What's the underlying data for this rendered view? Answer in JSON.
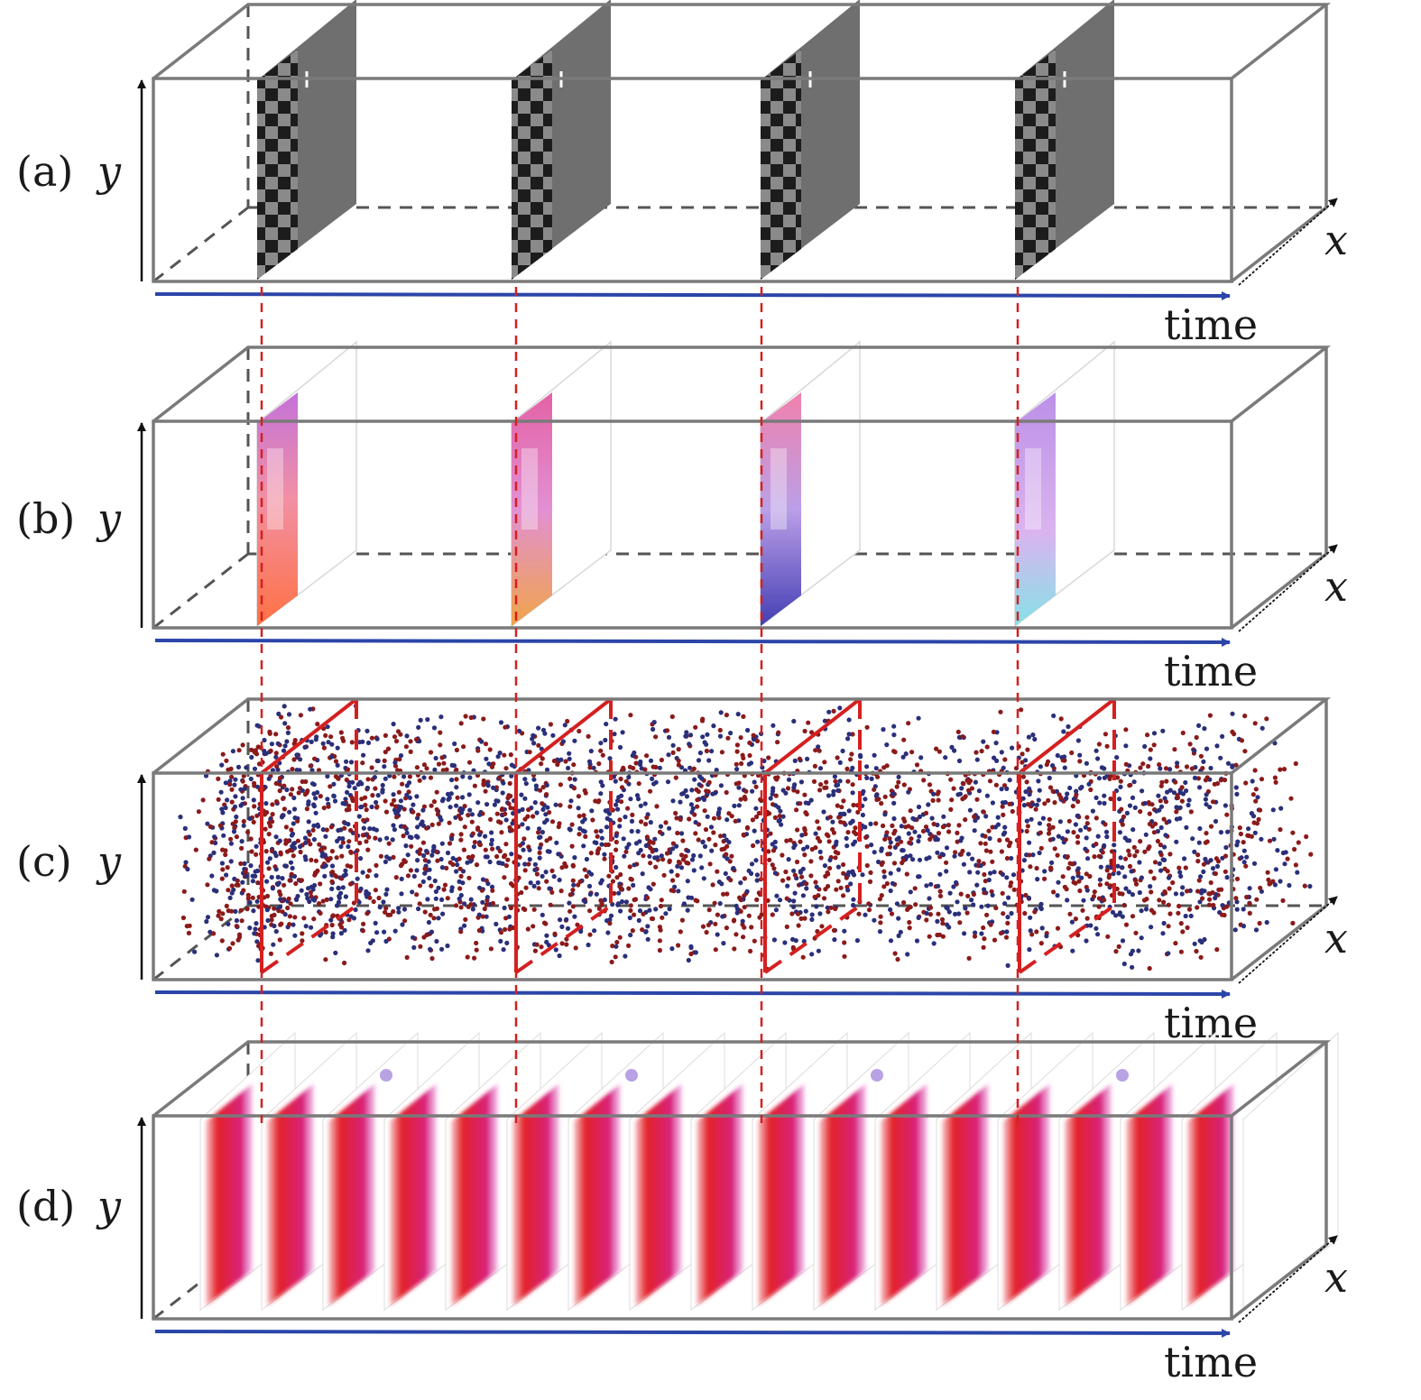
{
  "panels": [
    {
      "label": "(a)",
      "y_axis": "y",
      "x_axis": "x",
      "time_axis": "time",
      "kind": "grayscale-frames"
    },
    {
      "label": "(b)",
      "y_axis": "y",
      "x_axis": "x",
      "time_axis": "time",
      "kind": "color-frames"
    },
    {
      "label": "(c)",
      "y_axis": "y",
      "x_axis": "x",
      "time_axis": "time",
      "kind": "event-points"
    },
    {
      "label": "(d)",
      "y_axis": "y",
      "x_axis": "x",
      "time_axis": "time",
      "kind": "dense-color-frames"
    }
  ],
  "colors": {
    "box": "#7a7a7a",
    "time_arrow": "#2b45a8",
    "guide": "#d42020",
    "event_positive": "#8b1a1a",
    "event_negative": "#2a2f7a",
    "frame_red": "#e3232a",
    "frame_magenta": "#d63cb0",
    "frame_violet": "#9a7ad8",
    "checker_dark": "#1c1c1c",
    "checker_light": "#8a8a8a"
  }
}
